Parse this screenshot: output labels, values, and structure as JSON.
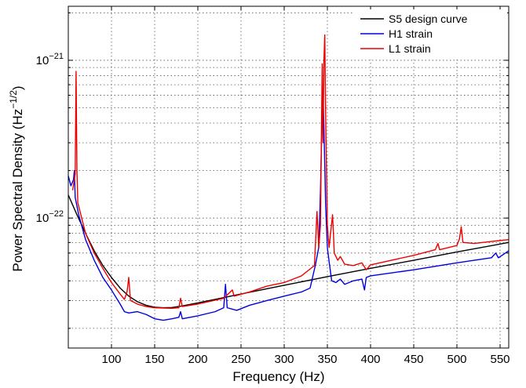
{
  "chart_data": {
    "type": "line",
    "title": "",
    "xlabel": "Frequency (Hz)",
    "ylabel": "Power Spectral Density (Hz",
    "ylabel_exponent": "−1/2",
    "ylabel_close": ")",
    "xlim": [
      50,
      560
    ],
    "ylim": [
      1.5e-23,
      2.2e-21
    ],
    "yscale": "log",
    "grid": true,
    "legend_position": "top-right",
    "x_ticks": [
      100,
      150,
      200,
      250,
      300,
      350,
      400,
      450,
      500,
      550
    ],
    "x_tick_labels": [
      "100",
      "150",
      "200",
      "250",
      "300",
      "350",
      "400",
      "450",
      "500",
      "550"
    ],
    "y_major_ticks": [
      {
        "value": 1e-22,
        "base": "10",
        "exp": "−22"
      },
      {
        "value": 1e-21,
        "base": "10",
        "exp": "−21"
      }
    ],
    "series": [
      {
        "name": "S5 design curve",
        "color": "#000000",
        "points": [
          [
            50,
            1.4e-22
          ],
          [
            60,
            1.05e-22
          ],
          [
            70,
            8e-23
          ],
          [
            80,
            6.2e-23
          ],
          [
            90,
            5e-23
          ],
          [
            100,
            4.2e-23
          ],
          [
            110,
            3.6e-23
          ],
          [
            120,
            3.2e-23
          ],
          [
            130,
            2.95e-23
          ],
          [
            140,
            2.8e-23
          ],
          [
            150,
            2.72e-23
          ],
          [
            160,
            2.7e-23
          ],
          [
            170,
            2.71e-23
          ],
          [
            180,
            2.76e-23
          ],
          [
            200,
            2.9e-23
          ],
          [
            220,
            3.05e-23
          ],
          [
            250,
            3.3e-23
          ],
          [
            300,
            3.75e-23
          ],
          [
            350,
            4.25e-23
          ],
          [
            400,
            4.8e-23
          ],
          [
            450,
            5.4e-23
          ],
          [
            500,
            6.1e-23
          ],
          [
            560,
            7e-23
          ]
        ]
      },
      {
        "name": "H1 strain",
        "color": "#0000dd",
        "points": [
          [
            50,
            1.85e-22
          ],
          [
            53,
            1.6e-22
          ],
          [
            56,
            1.75e-22
          ],
          [
            57,
            2e-22
          ],
          [
            58,
            1.35e-22
          ],
          [
            62,
            1.05e-22
          ],
          [
            70,
            7.3e-23
          ],
          [
            80,
            5.4e-23
          ],
          [
            90,
            4.2e-23
          ],
          [
            100,
            3.5e-23
          ],
          [
            110,
            2.85e-23
          ],
          [
            115,
            2.55e-23
          ],
          [
            120,
            2.5e-23
          ],
          [
            130,
            2.55e-23
          ],
          [
            140,
            2.45e-23
          ],
          [
            150,
            2.3e-23
          ],
          [
            160,
            2.25e-23
          ],
          [
            170,
            2.3e-23
          ],
          [
            178,
            2.35e-23
          ],
          [
            180,
            2.55e-23
          ],
          [
            182,
            2.3e-23
          ],
          [
            200,
            2.4e-23
          ],
          [
            220,
            2.55e-23
          ],
          [
            230,
            2.7e-23
          ],
          [
            232,
            3.8e-23
          ],
          [
            234,
            2.7e-23
          ],
          [
            245,
            2.6e-23
          ],
          [
            260,
            2.8e-23
          ],
          [
            280,
            3e-23
          ],
          [
            300,
            3.2e-23
          ],
          [
            320,
            3.4e-23
          ],
          [
            330,
            3.6e-23
          ],
          [
            336,
            5e-23
          ],
          [
            340,
            6.5e-23
          ],
          [
            342,
            1.5e-22
          ],
          [
            344,
            4.8e-22
          ],
          [
            345,
            6e-22
          ],
          [
            346,
            3.8e-22
          ],
          [
            348,
            1.2e-22
          ],
          [
            350,
            6.5e-23
          ],
          [
            352,
            5.3e-23
          ],
          [
            355,
            4e-23
          ],
          [
            360,
            3.9e-23
          ],
          [
            365,
            4.1e-23
          ],
          [
            370,
            3.8e-23
          ],
          [
            380,
            4e-23
          ],
          [
            390,
            4.1e-23
          ],
          [
            393,
            3.5e-23
          ],
          [
            395,
            4.2e-23
          ],
          [
            400,
            4.3e-23
          ],
          [
            450,
            4.7e-23
          ],
          [
            500,
            5.2e-23
          ],
          [
            540,
            5.6e-23
          ],
          [
            545,
            6e-23
          ],
          [
            548,
            5.6e-23
          ],
          [
            560,
            6.2e-23
          ]
        ]
      },
      {
        "name": "L1 strain",
        "color": "#ee0000",
        "points": [
          [
            55,
            1.5e-22
          ],
          [
            58,
            1.9e-22
          ],
          [
            59,
            8.5e-22
          ],
          [
            60,
            2e-22
          ],
          [
            61,
            1.25e-22
          ],
          [
            70,
            8e-23
          ],
          [
            80,
            6e-23
          ],
          [
            90,
            4.8e-23
          ],
          [
            100,
            3.9e-23
          ],
          [
            110,
            3.3e-23
          ],
          [
            115,
            3.05e-23
          ],
          [
            118,
            3.4e-23
          ],
          [
            120,
            4.2e-23
          ],
          [
            122,
            3e-23
          ],
          [
            130,
            2.85e-23
          ],
          [
            140,
            2.75e-23
          ],
          [
            150,
            2.7e-23
          ],
          [
            170,
            2.68e-23
          ],
          [
            178,
            2.7e-23
          ],
          [
            180,
            3.1e-23
          ],
          [
            182,
            2.75e-23
          ],
          [
            200,
            2.85e-23
          ],
          [
            230,
            3.1e-23
          ],
          [
            240,
            3.5e-23
          ],
          [
            242,
            3.2e-23
          ],
          [
            260,
            3.4e-23
          ],
          [
            280,
            3.7e-23
          ],
          [
            300,
            3.9e-23
          ],
          [
            320,
            4.3e-23
          ],
          [
            335,
            5e-23
          ],
          [
            338,
            1.1e-22
          ],
          [
            340,
            6.5e-23
          ],
          [
            342,
            9e-23
          ],
          [
            344,
            9.5e-22
          ],
          [
            345,
            3e-22
          ],
          [
            346,
            1e-21
          ],
          [
            347,
            1.45e-21
          ],
          [
            348,
            4.5e-22
          ],
          [
            350,
            9e-23
          ],
          [
            352,
            6.5e-23
          ],
          [
            356,
            1.05e-22
          ],
          [
            358,
            6e-23
          ],
          [
            362,
            5.4e-23
          ],
          [
            365,
            5.7e-23
          ],
          [
            370,
            5.1e-23
          ],
          [
            380,
            5e-23
          ],
          [
            390,
            5.2e-23
          ],
          [
            395,
            4.7e-23
          ],
          [
            400,
            5.05e-23
          ],
          [
            450,
            5.8e-23
          ],
          [
            475,
            6.3e-23
          ],
          [
            478,
            6.9e-23
          ],
          [
            480,
            6.3e-23
          ],
          [
            500,
            6.7e-23
          ],
          [
            503,
            7.4e-23
          ],
          [
            505,
            8.8e-23
          ],
          [
            507,
            7e-23
          ],
          [
            520,
            6.9e-23
          ],
          [
            540,
            7.1e-23
          ],
          [
            560,
            7.3e-23
          ]
        ]
      }
    ]
  }
}
